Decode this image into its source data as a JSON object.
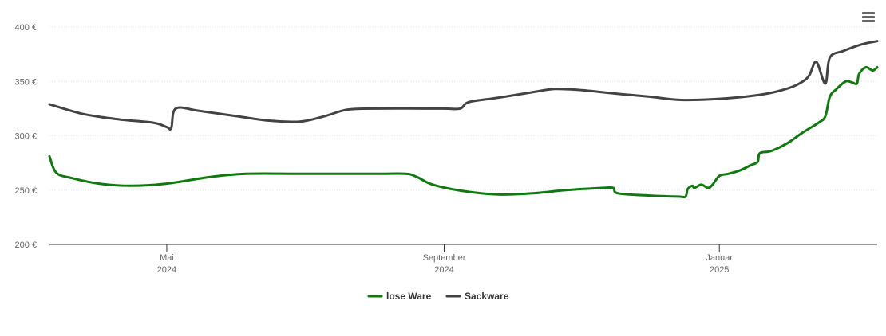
{
  "menu": {
    "icon": "hamburger-menu-icon"
  },
  "chart_data": {
    "type": "line",
    "title": "",
    "xlabel": "",
    "ylabel": "",
    "ylim": [
      200,
      400
    ],
    "yticks": [
      200,
      250,
      300,
      350,
      400
    ],
    "ytick_labels": [
      "200 €",
      "250 €",
      "300 €",
      "350 €",
      "400 €"
    ],
    "xlim": [
      "2024-03-10",
      "2025-03-12"
    ],
    "xticks": [
      {
        "date": "2024-05-01",
        "label1": "Mai",
        "label2": "2024"
      },
      {
        "date": "2024-09-01",
        "label1": "September",
        "label2": "2024"
      },
      {
        "date": "2025-01-01",
        "label1": "Januar",
        "label2": "2025"
      }
    ],
    "grid": true,
    "legend": "bottom-center",
    "series": [
      {
        "name": "lose Ware",
        "color": "#0e7a0d",
        "points": [
          [
            "2024-03-10",
            281
          ],
          [
            "2024-03-13",
            266
          ],
          [
            "2024-03-20",
            261
          ],
          [
            "2024-04-01",
            256
          ],
          [
            "2024-04-15",
            254
          ],
          [
            "2024-05-01",
            256
          ],
          [
            "2024-05-20",
            262
          ],
          [
            "2024-06-05",
            265
          ],
          [
            "2024-07-01",
            265
          ],
          [
            "2024-08-01",
            265
          ],
          [
            "2024-08-15",
            265
          ],
          [
            "2024-08-20",
            262
          ],
          [
            "2024-08-27",
            255
          ],
          [
            "2024-09-10",
            249
          ],
          [
            "2024-09-25",
            246
          ],
          [
            "2024-10-10",
            247
          ],
          [
            "2024-10-25",
            250
          ],
          [
            "2024-11-10",
            252
          ],
          [
            "2024-11-15",
            252
          ],
          [
            "2024-11-17",
            247
          ],
          [
            "2024-12-01",
            245
          ],
          [
            "2024-12-14",
            244
          ],
          [
            "2024-12-17",
            244
          ],
          [
            "2024-12-18",
            251
          ],
          [
            "2024-12-20",
            254
          ],
          [
            "2024-12-21",
            252
          ],
          [
            "2024-12-24",
            255
          ],
          [
            "2024-12-27",
            252
          ],
          [
            "2024-12-29",
            255
          ],
          [
            "2025-01-01",
            263
          ],
          [
            "2025-01-05",
            265
          ],
          [
            "2025-01-10",
            268
          ],
          [
            "2025-01-15",
            273
          ],
          [
            "2025-01-18",
            276
          ],
          [
            "2025-01-19",
            284
          ],
          [
            "2025-01-24",
            286
          ],
          [
            "2025-01-31",
            293
          ],
          [
            "2025-02-07",
            303
          ],
          [
            "2025-02-14",
            312
          ],
          [
            "2025-02-17",
            318
          ],
          [
            "2025-02-19",
            336
          ],
          [
            "2025-02-22",
            343
          ],
          [
            "2025-02-26",
            350
          ],
          [
            "2025-03-01",
            349
          ],
          [
            "2025-03-03",
            348
          ],
          [
            "2025-03-04",
            357
          ],
          [
            "2025-03-07",
            363
          ],
          [
            "2025-03-10",
            360
          ],
          [
            "2025-03-12",
            363
          ]
        ]
      },
      {
        "name": "Sackware",
        "color": "#434343",
        "points": [
          [
            "2024-03-10",
            329
          ],
          [
            "2024-03-25",
            320
          ],
          [
            "2024-04-10",
            315
          ],
          [
            "2024-04-25",
            312
          ],
          [
            "2024-05-01",
            308
          ],
          [
            "2024-05-03",
            307
          ],
          [
            "2024-05-05",
            325
          ],
          [
            "2024-05-15",
            323
          ],
          [
            "2024-06-01",
            318
          ],
          [
            "2024-06-15",
            314
          ],
          [
            "2024-06-29",
            313
          ],
          [
            "2024-07-10",
            318
          ],
          [
            "2024-07-20",
            324
          ],
          [
            "2024-08-01",
            325
          ],
          [
            "2024-08-31",
            325
          ],
          [
            "2024-09-08",
            325
          ],
          [
            "2024-09-12",
            331
          ],
          [
            "2024-09-25",
            335
          ],
          [
            "2024-10-10",
            340
          ],
          [
            "2024-10-20",
            343
          ],
          [
            "2024-11-01",
            342
          ],
          [
            "2024-11-15",
            339
          ],
          [
            "2024-11-20",
            338
          ],
          [
            "2024-12-01",
            336
          ],
          [
            "2024-12-15",
            333
          ],
          [
            "2025-01-01",
            334
          ],
          [
            "2025-01-20",
            338
          ],
          [
            "2025-02-01",
            344
          ],
          [
            "2025-02-07",
            350
          ],
          [
            "2025-02-10",
            356
          ],
          [
            "2025-02-13",
            368
          ],
          [
            "2025-02-17",
            348
          ],
          [
            "2025-02-19",
            372
          ],
          [
            "2025-02-25",
            378
          ],
          [
            "2025-03-05",
            384
          ],
          [
            "2025-03-12",
            387
          ]
        ]
      }
    ]
  }
}
